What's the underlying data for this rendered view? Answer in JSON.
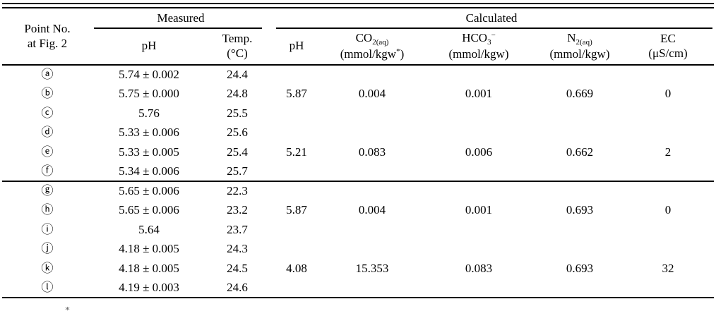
{
  "table": {
    "group_headers": {
      "point_line1": "Point No.",
      "point_line2": "at Fig. 2",
      "measured": "Measured",
      "calculated": "Calculated"
    },
    "columns": {
      "ph_measured": "pH",
      "temp": {
        "label": "Temp.",
        "unit": "(°C)"
      },
      "ph_calc": "pH",
      "co2": {
        "base": "CO",
        "sub": "2(aq)",
        "unit_pre": "(mmol/kgw",
        "unit_sup": "*",
        "unit_post": ")"
      },
      "hco3": {
        "base": "HCO",
        "sub": "3",
        "sup": "−",
        "unit": "(mmol/kgw)"
      },
      "n2": {
        "base": "N",
        "sub": "2(aq)",
        "unit": "(mmol/kgw)"
      },
      "ec": {
        "label": "EC",
        "unit": "(μS/cm)"
      }
    },
    "rows": [
      {
        "point": "ⓐ",
        "ph": "5.74 ± 0.002",
        "temp": "24.4",
        "cph": "",
        "co2": "",
        "hco3": "",
        "n2": "",
        "ec": ""
      },
      {
        "point": "ⓑ",
        "ph": "5.75 ± 0.000",
        "temp": "24.8",
        "cph": "5.87",
        "co2": "0.004",
        "hco3": "0.001",
        "n2": "0.669",
        "ec": "0"
      },
      {
        "point": "ⓒ",
        "ph": "5.76",
        "temp": "25.5",
        "cph": "",
        "co2": "",
        "hco3": "",
        "n2": "",
        "ec": ""
      },
      {
        "point": "ⓓ",
        "ph": "5.33 ± 0.006",
        "temp": "25.6",
        "cph": "",
        "co2": "",
        "hco3": "",
        "n2": "",
        "ec": ""
      },
      {
        "point": "ⓔ",
        "ph": "5.33 ± 0.005",
        "temp": "25.4",
        "cph": "5.21",
        "co2": "0.083",
        "hco3": "0.006",
        "n2": "0.662",
        "ec": "2"
      },
      {
        "point": "ⓕ",
        "ph": "5.34 ± 0.006",
        "temp": "25.7",
        "cph": "",
        "co2": "",
        "hco3": "",
        "n2": "",
        "ec": ""
      },
      {
        "point": "ⓖ",
        "ph": "5.65 ± 0.006",
        "temp": "22.3",
        "cph": "",
        "co2": "",
        "hco3": "",
        "n2": "",
        "ec": ""
      },
      {
        "point": "ⓗ",
        "ph": "5.65 ± 0.006",
        "temp": "23.2",
        "cph": "5.87",
        "co2": "0.004",
        "hco3": "0.001",
        "n2": "0.693",
        "ec": "0"
      },
      {
        "point": "ⓘ",
        "ph": "5.64",
        "temp": "23.7",
        "cph": "",
        "co2": "",
        "hco3": "",
        "n2": "",
        "ec": ""
      },
      {
        "point": "ⓙ",
        "ph": "4.18 ± 0.005",
        "temp": "24.3",
        "cph": "",
        "co2": "",
        "hco3": "",
        "n2": "",
        "ec": ""
      },
      {
        "point": "ⓚ",
        "ph": "4.18 ± 0.005",
        "temp": "24.5",
        "cph": "4.08",
        "co2": "15.353",
        "hco3": "0.083",
        "n2": "0.693",
        "ec": "32"
      },
      {
        "point": "ⓛ",
        "ph": "4.19 ± 0.003",
        "temp": "24.6",
        "cph": "",
        "co2": "",
        "hco3": "",
        "n2": "",
        "ec": ""
      }
    ],
    "footnote_mark": "*"
  }
}
